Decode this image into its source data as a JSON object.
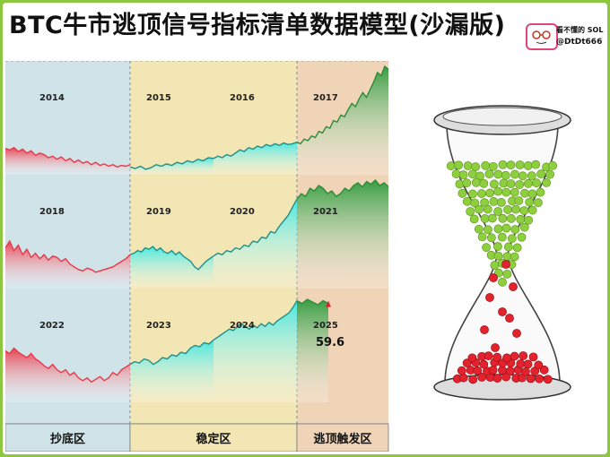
{
  "title": "BTC牛市逃顶信号指标清单数据模型(沙漏版)",
  "brand": {
    "name": "看不懂的 SOL",
    "handle": "@DtDt666"
  },
  "colors": {
    "page_border": "#8dc63f",
    "zone_bottom": "#cfe3e8",
    "zone_stable": "#f2e6b4",
    "zone_top": "#f0d4b8",
    "bear_red": "#e8394a",
    "stable_cyan": "#3ee7e0",
    "bull_green": "#3aa845",
    "sand_green": "#8dcf3c",
    "sand_red": "#e3222e"
  },
  "zones": [
    {
      "label": "抄底区"
    },
    {
      "label": "稳定区"
    },
    {
      "label": "逃顶触发区"
    }
  ],
  "chart_data": [
    {
      "type": "area",
      "zone": "抄底区",
      "year_label": "2014",
      "series_color": "red",
      "y": [
        54,
        52,
        55,
        50,
        53,
        48,
        51,
        45,
        48,
        46,
        42,
        44,
        40,
        43,
        38,
        41,
        36,
        39,
        35,
        37,
        33,
        36,
        32,
        34,
        31,
        33,
        30,
        32,
        31,
        33
      ]
    },
    {
      "type": "area",
      "zone": "稳定区",
      "year_label": "2015",
      "series_color": "cyan",
      "y": [
        30,
        28,
        31,
        27,
        29,
        33,
        31,
        34,
        32,
        36,
        34,
        38,
        36,
        40,
        38,
        42,
        41
      ]
    },
    {
      "type": "area",
      "zone": "稳定区",
      "year_label": "2016",
      "series_color": "cyan",
      "y": [
        41,
        44,
        42,
        46,
        44,
        48,
        52,
        50,
        55,
        53,
        57,
        55,
        59,
        57,
        60,
        58,
        61,
        59,
        60,
        62
      ]
    },
    {
      "type": "area",
      "zone": "逃顶触发区",
      "year_label": "2017",
      "series_color": "green",
      "y": [
        62,
        60,
        66,
        64,
        70,
        68,
        76,
        74,
        82,
        80,
        90,
        88,
        97,
        95,
        104,
        112,
        108,
        118,
        126,
        120,
        130,
        140,
        152,
        148,
        160,
        156
      ]
    },
    {
      "type": "area",
      "zone": "抄底区",
      "year_label": "2018",
      "series_color": "red",
      "y": [
        50,
        55,
        48,
        52,
        45,
        49,
        43,
        46,
        42,
        45,
        41,
        44,
        43,
        40,
        42,
        38,
        36,
        34,
        33,
        35,
        34,
        32,
        33,
        34,
        35,
        36,
        38,
        40,
        42,
        45
      ]
    },
    {
      "type": "area",
      "zone": "稳定区",
      "year_label": "2019",
      "series_color": "cyan",
      "y": [
        45,
        46,
        48,
        47,
        50,
        49,
        51,
        48,
        50,
        47,
        46,
        48,
        45,
        47,
        44,
        42,
        40,
        36,
        34,
        37,
        40,
        42,
        44
      ]
    },
    {
      "type": "area",
      "zone": "稳定区",
      "year_label": "2020",
      "series_color": "cyan",
      "y": [
        44,
        46,
        45,
        48,
        47,
        50,
        49,
        52,
        51,
        55,
        54,
        58,
        57,
        62,
        61,
        66,
        70,
        74,
        80,
        86
      ]
    },
    {
      "type": "area",
      "zone": "逃顶触发区",
      "year_label": "2021",
      "series_color": "green",
      "y": [
        86,
        90,
        88,
        94,
        92,
        96,
        94,
        90,
        92,
        88,
        90,
        94,
        92,
        96,
        98,
        95,
        99,
        97,
        100,
        96,
        98,
        95
      ]
    },
    {
      "type": "area",
      "zone": "抄底区",
      "year_label": "2022",
      "series_color": "red",
      "y": [
        58,
        56,
        60,
        57,
        55,
        53,
        56,
        52,
        50,
        47,
        45,
        48,
        44,
        42,
        44,
        40,
        42,
        38,
        36,
        38,
        35,
        37,
        39,
        36,
        38,
        42,
        40,
        44,
        46,
        48
      ]
    },
    {
      "type": "area",
      "zone": "稳定区",
      "year_label": "2023",
      "series_color": "cyan",
      "y": [
        48,
        50,
        49,
        52,
        51,
        48,
        50,
        53,
        52,
        55,
        54,
        57,
        56,
        60,
        62,
        61,
        64,
        63,
        66
      ]
    },
    {
      "type": "area",
      "zone": "稳定区",
      "year_label": "2024",
      "series_color": "cyan",
      "y": [
        66,
        68,
        70,
        72,
        74,
        73,
        76,
        78,
        76,
        74,
        77,
        75,
        78,
        76,
        79,
        77,
        80,
        82,
        84,
        86,
        90,
        95
      ]
    },
    {
      "type": "area",
      "zone": "逃顶触发区",
      "year_label": "2025",
      "series_color": "green",
      "y": [
        95,
        93,
        96,
        94,
        92,
        95,
        93
      ],
      "annotation": "59.6"
    }
  ],
  "hourglass": {
    "green_balls": 96,
    "red_falling": 9,
    "red_pile": 40
  }
}
